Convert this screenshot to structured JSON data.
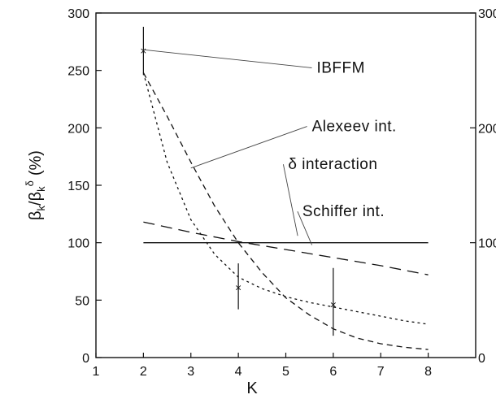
{
  "chart_data": {
    "type": "line",
    "xlabel": "K",
    "ylabel_parts": {
      "beta": "β",
      "k": "k",
      "slash": "/",
      "delta": "δ",
      "percent": "(%)"
    },
    "xlim": [
      1,
      9
    ],
    "ylim": [
      0,
      300
    ],
    "x_ticks": [
      1,
      2,
      3,
      4,
      5,
      6,
      7,
      8
    ],
    "y_ticks": [
      0,
      50,
      100,
      150,
      200,
      250,
      300
    ],
    "y2_ticks": [
      0,
      100,
      200,
      300
    ],
    "grid": false,
    "series": [
      {
        "name": "δ interaction",
        "style": "solid",
        "points": [
          [
            2,
            100
          ],
          [
            8,
            100
          ]
        ]
      },
      {
        "name": "Schiffer int.",
        "style": "long-dash",
        "points": [
          [
            2,
            118
          ],
          [
            3,
            109
          ],
          [
            4,
            101
          ],
          [
            5,
            94
          ],
          [
            6,
            87
          ],
          [
            7,
            80
          ],
          [
            8,
            72
          ]
        ]
      },
      {
        "name": "Alexeev int.",
        "style": "medium-dash",
        "points": [
          [
            2,
            248
          ],
          [
            2.5,
            210
          ],
          [
            3,
            170
          ],
          [
            3.5,
            132
          ],
          [
            4,
            100
          ],
          [
            4.5,
            74
          ],
          [
            5,
            52
          ],
          [
            5.5,
            37
          ],
          [
            6,
            25
          ],
          [
            6.5,
            17
          ],
          [
            7,
            12
          ],
          [
            7.5,
            9
          ],
          [
            8,
            7
          ]
        ]
      },
      {
        "name": "IBFFM",
        "style": "short-dash",
        "points": [
          [
            2,
            248
          ],
          [
            2.5,
            170
          ],
          [
            3,
            120
          ],
          [
            3.5,
            90
          ],
          [
            4,
            70
          ],
          [
            4.5,
            60
          ],
          [
            5,
            53
          ],
          [
            5.5,
            48
          ],
          [
            6,
            44
          ],
          [
            6.5,
            40
          ],
          [
            7,
            36
          ],
          [
            7.5,
            32
          ],
          [
            8,
            29
          ]
        ]
      }
    ],
    "experimental": [
      {
        "x": 2,
        "y": 268,
        "err_low": 246,
        "err_high": 288
      },
      {
        "x": 4,
        "y": 62,
        "err_low": 42,
        "err_high": 82
      },
      {
        "x": 6,
        "y": 47,
        "err_low": 19,
        "err_high": 78
      }
    ],
    "annotations": [
      {
        "text": "IBFFM",
        "x": 5.65,
        "y": 248,
        "pointer_to": [
          2.0,
          268
        ]
      },
      {
        "text": "Alexeev int.",
        "x": 5.55,
        "y": 197,
        "pointer_to": [
          3.0,
          165
        ]
      },
      {
        "text": "δ interaction",
        "x": 5.05,
        "y": 164,
        "pointer_to": [
          5.25,
          106
        ]
      },
      {
        "text": "Schiffer int.",
        "x": 5.35,
        "y": 123,
        "pointer_to": [
          5.55,
          98
        ]
      }
    ]
  }
}
